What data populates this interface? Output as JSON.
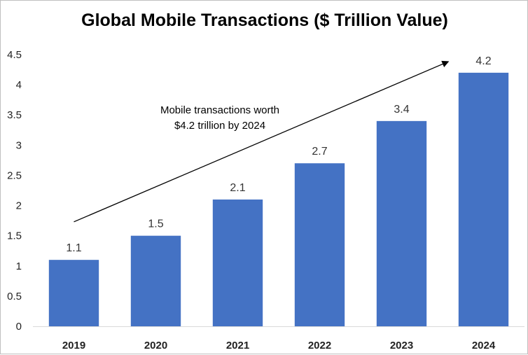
{
  "chart_data": {
    "type": "bar",
    "title": "Global Mobile Transactions ($ Trillion Value)",
    "xlabel": "",
    "ylabel": "",
    "categories": [
      "2019",
      "2020",
      "2021",
      "2022",
      "2023",
      "2024"
    ],
    "values": [
      1.1,
      1.5,
      2.1,
      2.7,
      3.4,
      4.2
    ],
    "data_labels": [
      "1.1",
      "1.5",
      "2.1",
      "2.7",
      "3.4",
      "4.2"
    ],
    "ylim": [
      0,
      4.5
    ],
    "yticks": [
      "0",
      "0.5",
      "1",
      "1.5",
      "2",
      "2.5",
      "3",
      "3.5",
      "4",
      "4.5"
    ],
    "grid": false,
    "legend": "none",
    "bar_color": "#4472C4",
    "annotation": {
      "lines": [
        "Mobile transactions worth",
        "$4.2 trillion by 2024"
      ],
      "arrow": {
        "from": {
          "x": "2019",
          "y": 1.73
        },
        "to": {
          "x": "2024",
          "y": 4.38
        }
      }
    }
  }
}
